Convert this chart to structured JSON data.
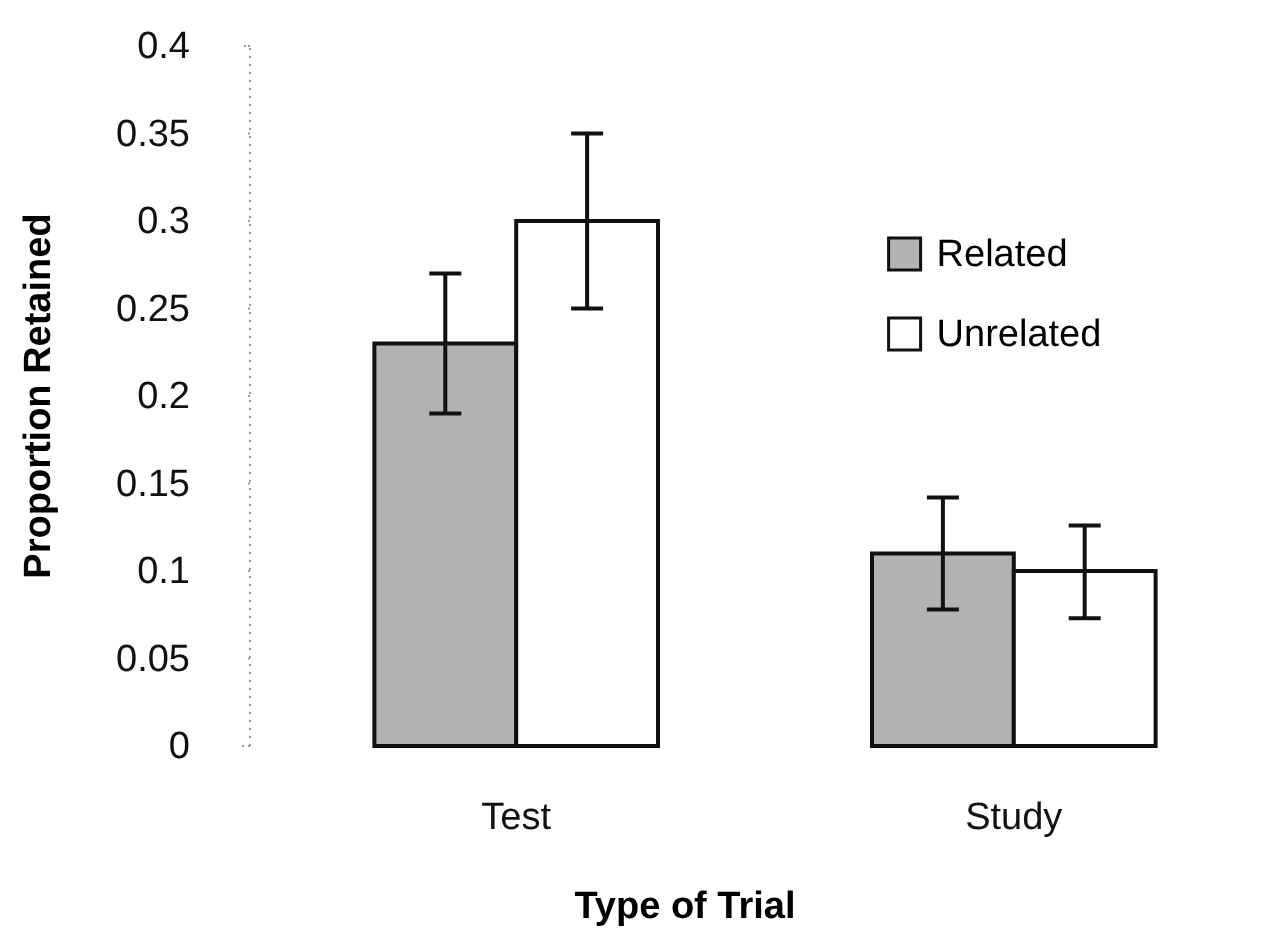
{
  "chart_data": {
    "type": "bar",
    "xlabel": "Type of Trial",
    "ylabel": "Proportion Retained",
    "categories": [
      "Test",
      "Study"
    ],
    "series": [
      {
        "name": "Related",
        "color": "#b3b3b3",
        "values": [
          0.23,
          0.11
        ],
        "errors": [
          [
            0.19,
            0.27
          ],
          [
            0.078,
            0.142
          ]
        ]
      },
      {
        "name": "Unrelated",
        "color": "#ffffff",
        "values": [
          0.3,
          0.1
        ],
        "errors": [
          [
            0.25,
            0.35
          ],
          [
            0.073,
            0.126
          ]
        ]
      }
    ],
    "ylim": [
      0,
      0.4
    ],
    "yticks": [
      0,
      0.05,
      0.1,
      0.15,
      0.2,
      0.25,
      0.3,
      0.35,
      0.4
    ],
    "legend": "right"
  }
}
